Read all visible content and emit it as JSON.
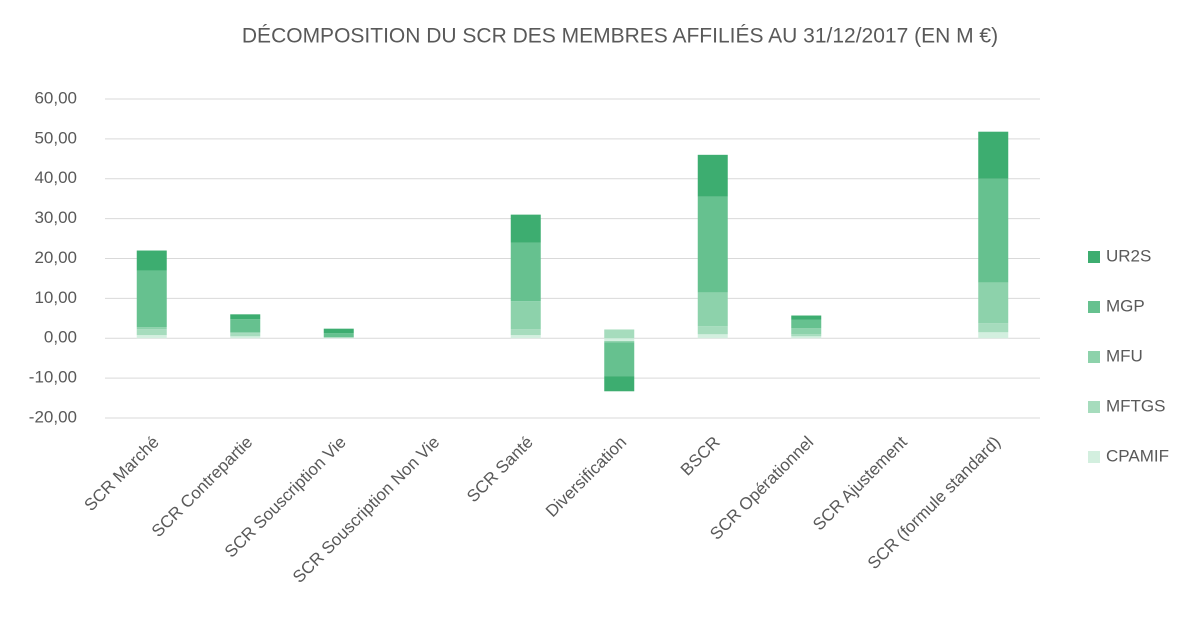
{
  "chart_data": {
    "type": "stacked_bar",
    "title": "DÉCOMPOSITION DU SCR DES MEMBRES AFFILIÉS AU 31/12/2017 (EN M €)",
    "categories": [
      "SCR Marché",
      "SCR Contrepartie",
      "SCR Souscription Vie",
      "SCR Souscription Non Vie",
      "SCR Santé",
      "Diversification",
      "BSCR",
      "SCR Opérationnel",
      "SCR Ajustement",
      "SCR (formule standard)"
    ],
    "series": [
      {
        "name": "CPAMIF",
        "color": "#d3efdf",
        "values": [
          0.8,
          0.5,
          0.1,
          0,
          0.8,
          -0.7,
          1.0,
          0.5,
          0,
          1.5
        ]
      },
      {
        "name": "MFTGS",
        "color": "#a6dcbd",
        "values": [
          1.5,
          0.8,
          0.2,
          0,
          1.5,
          2.2,
          2.0,
          0.5,
          0,
          2.3
        ]
      },
      {
        "name": "MFU",
        "color": "#8dd2ab",
        "values": [
          0.5,
          0.2,
          0,
          0,
          7.0,
          -0.3,
          8.5,
          1.5,
          0,
          10.2
        ]
      },
      {
        "name": "MGP",
        "color": "#66c18f",
        "values": [
          14.2,
          3.3,
          1.0,
          0,
          14.7,
          -8.5,
          24.0,
          2.2,
          0,
          26.0
        ]
      },
      {
        "name": "UR2S",
        "color": "#3dad70",
        "values": [
          5.0,
          1.2,
          1.1,
          0,
          7.0,
          -3.8,
          10.5,
          1.0,
          0,
          11.8
        ]
      }
    ],
    "ylim": [
      -20,
      60
    ],
    "yticks": [
      {
        "value": -20,
        "label": "-20,00"
      },
      {
        "value": -10,
        "label": "-10,00"
      },
      {
        "value": 0,
        "label": "0,00"
      },
      {
        "value": 10,
        "label": "10,00"
      },
      {
        "value": 20,
        "label": "20,00"
      },
      {
        "value": 30,
        "label": "30,00"
      },
      {
        "value": 40,
        "label": "40,00"
      },
      {
        "value": 50,
        "label": "50,00"
      },
      {
        "value": 60,
        "label": "60,00"
      }
    ],
    "grid": true,
    "legend": "right"
  }
}
